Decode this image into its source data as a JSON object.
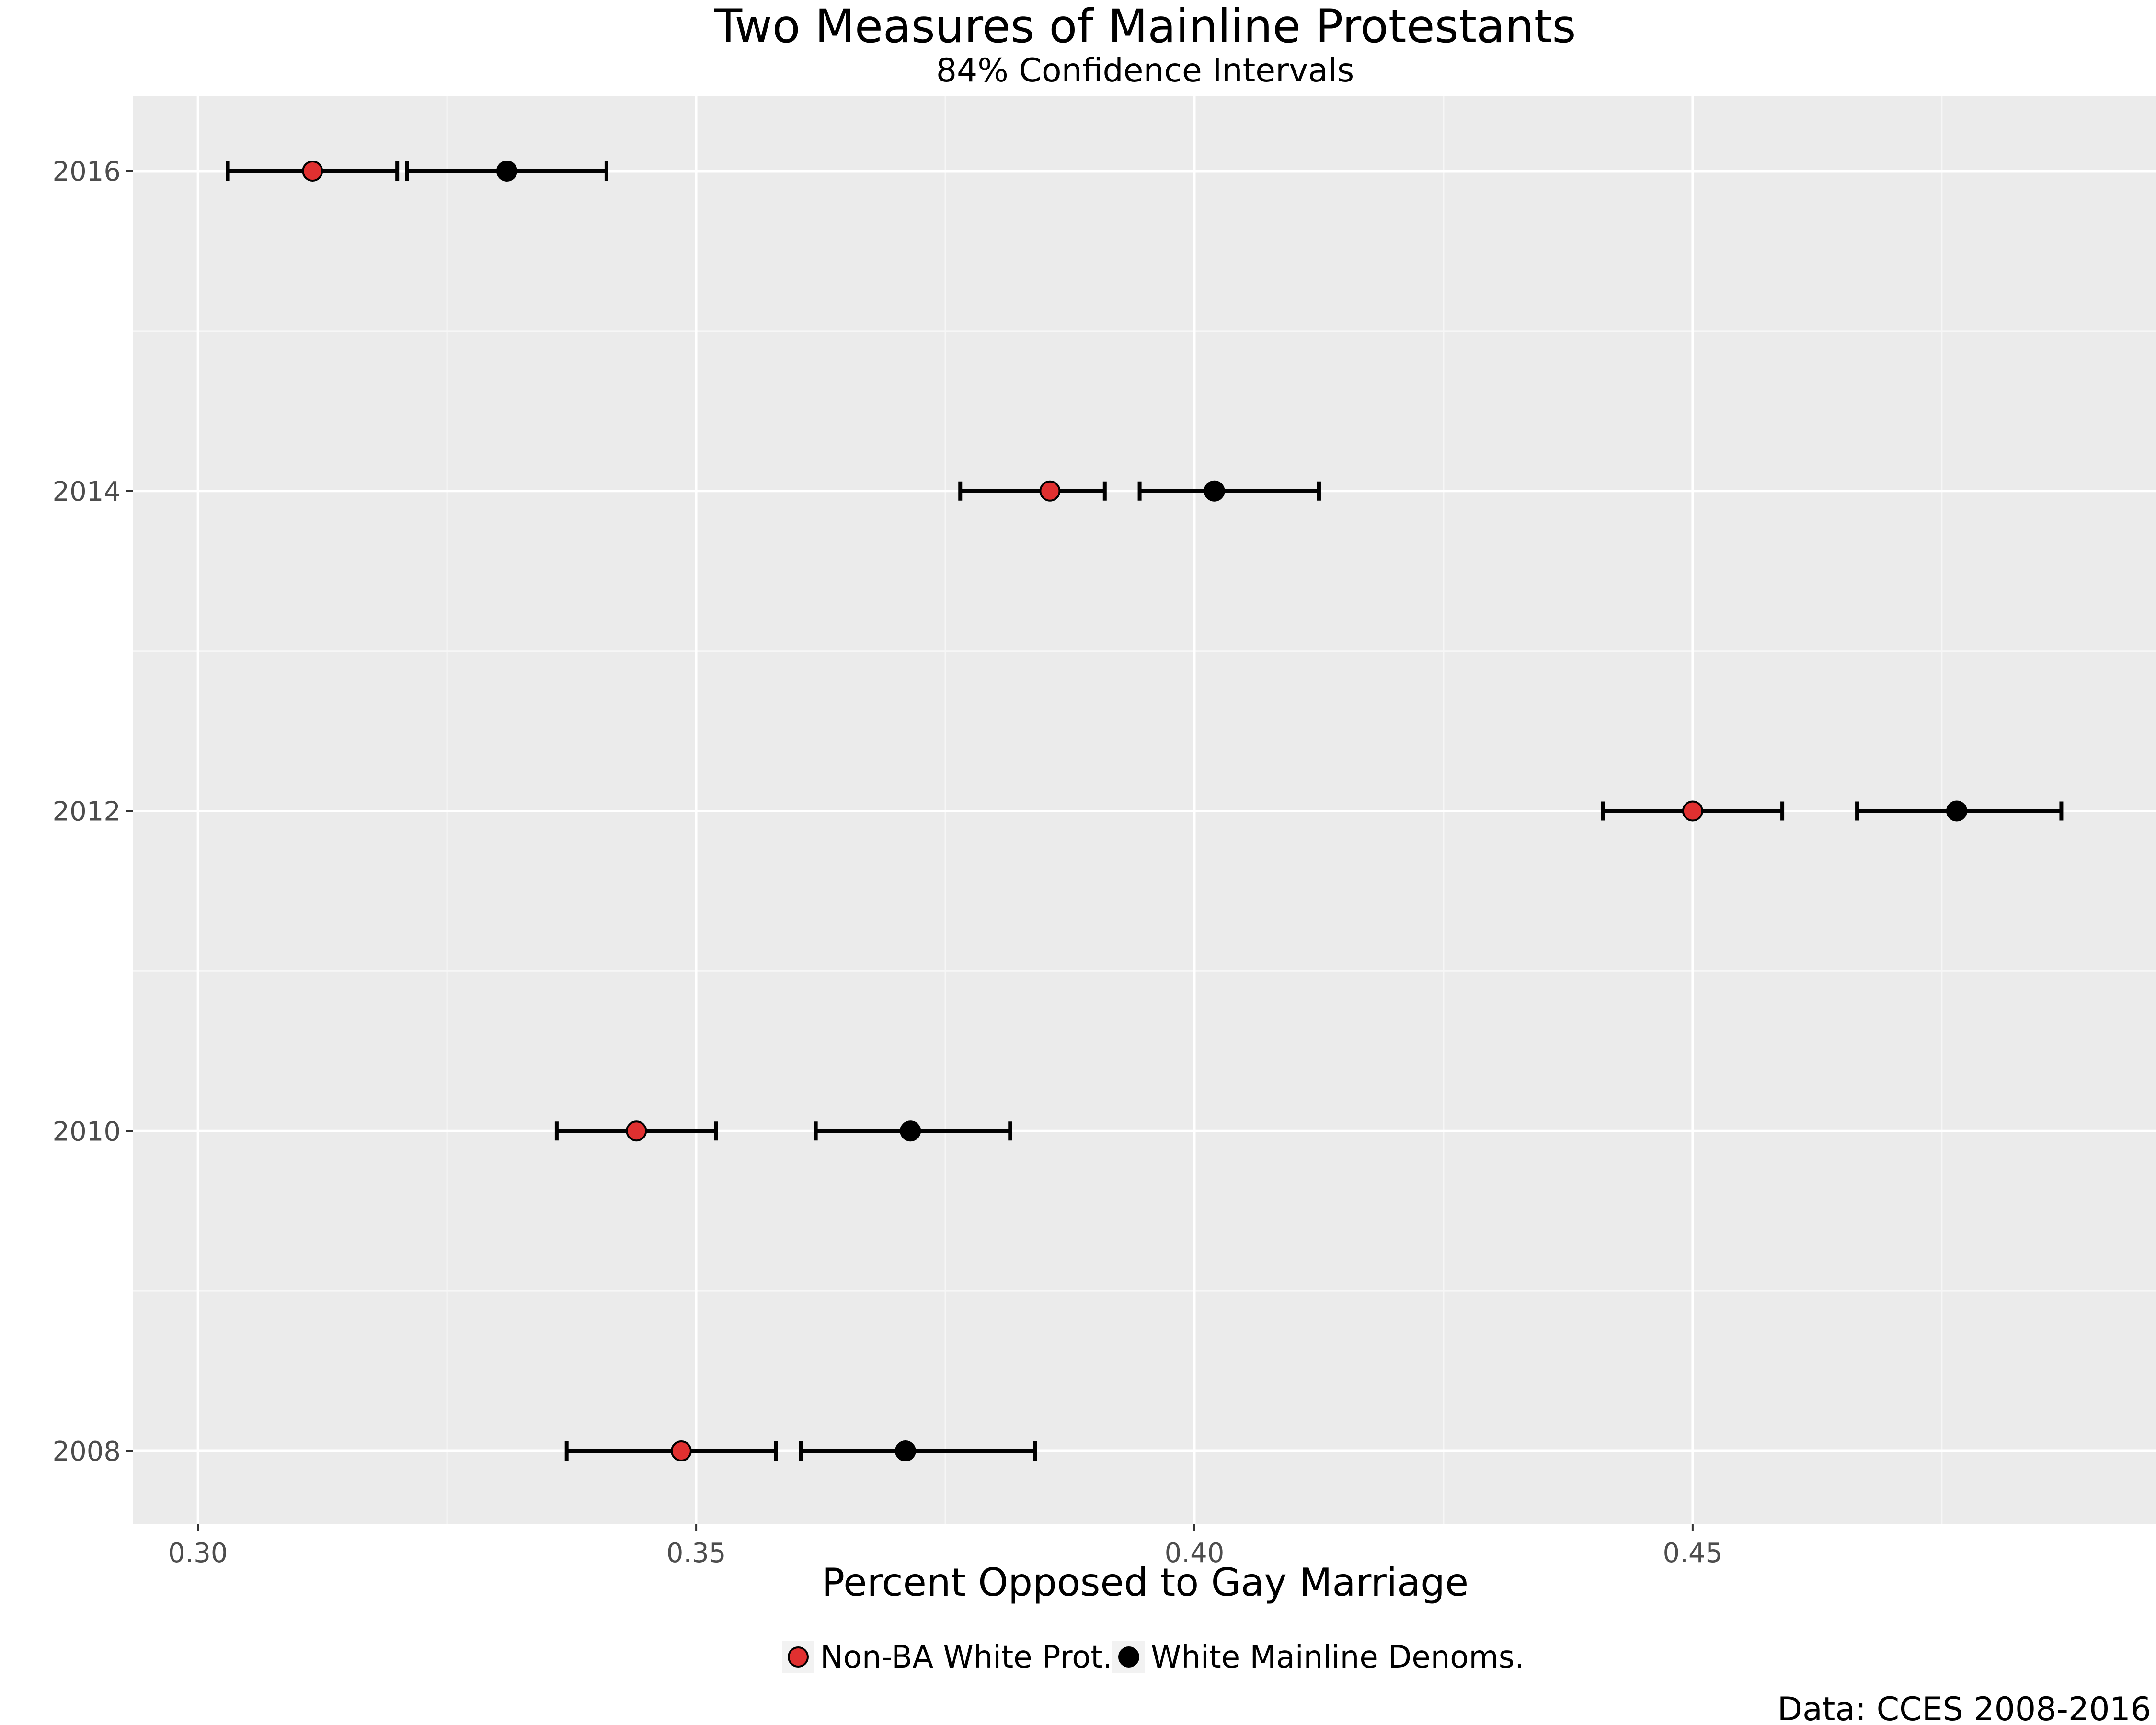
{
  "chart_data": {
    "type": "scatter",
    "title": "Two Measures of Mainline Protestants",
    "subtitle": "84% Confidence Intervals",
    "xlabel": "Percent Opposed to Gay Marriage",
    "ylabel": "",
    "caption": "Data: CCES 2008-2016",
    "xlim": [
      0.2935,
      0.4965
    ],
    "x_ticks": [
      0.3,
      0.35,
      0.4,
      0.45
    ],
    "x_tick_labels": [
      "0.30",
      "0.35",
      "0.40",
      "0.45"
    ],
    "y_categories": [
      "2008",
      "2010",
      "2012",
      "2014",
      "2016"
    ],
    "grid": true,
    "legend_position": "bottom",
    "series": [
      {
        "name": "Non-BA White Prot.",
        "color": "#e03030",
        "points": [
          {
            "y": "2008",
            "x": 0.3485,
            "lo": 0.337,
            "hi": 0.358
          },
          {
            "y": "2010",
            "x": 0.344,
            "lo": 0.336,
            "hi": 0.352
          },
          {
            "y": "2012",
            "x": 0.45,
            "lo": 0.441,
            "hi": 0.459
          },
          {
            "y": "2014",
            "x": 0.3855,
            "lo": 0.3765,
            "hi": 0.391
          },
          {
            "y": "2016",
            "x": 0.3115,
            "lo": 0.303,
            "hi": 0.32
          }
        ]
      },
      {
        "name": "White Mainline Denoms.",
        "color": "#000000",
        "points": [
          {
            "y": "2008",
            "x": 0.371,
            "lo": 0.3605,
            "hi": 0.384
          },
          {
            "y": "2010",
            "x": 0.3715,
            "lo": 0.362,
            "hi": 0.3815
          },
          {
            "y": "2012",
            "x": 0.4765,
            "lo": 0.4665,
            "hi": 0.487
          },
          {
            "y": "2014",
            "x": 0.402,
            "lo": 0.3945,
            "hi": 0.4125
          },
          {
            "y": "2016",
            "x": 0.331,
            "lo": 0.321,
            "hi": 0.341
          }
        ]
      }
    ]
  }
}
